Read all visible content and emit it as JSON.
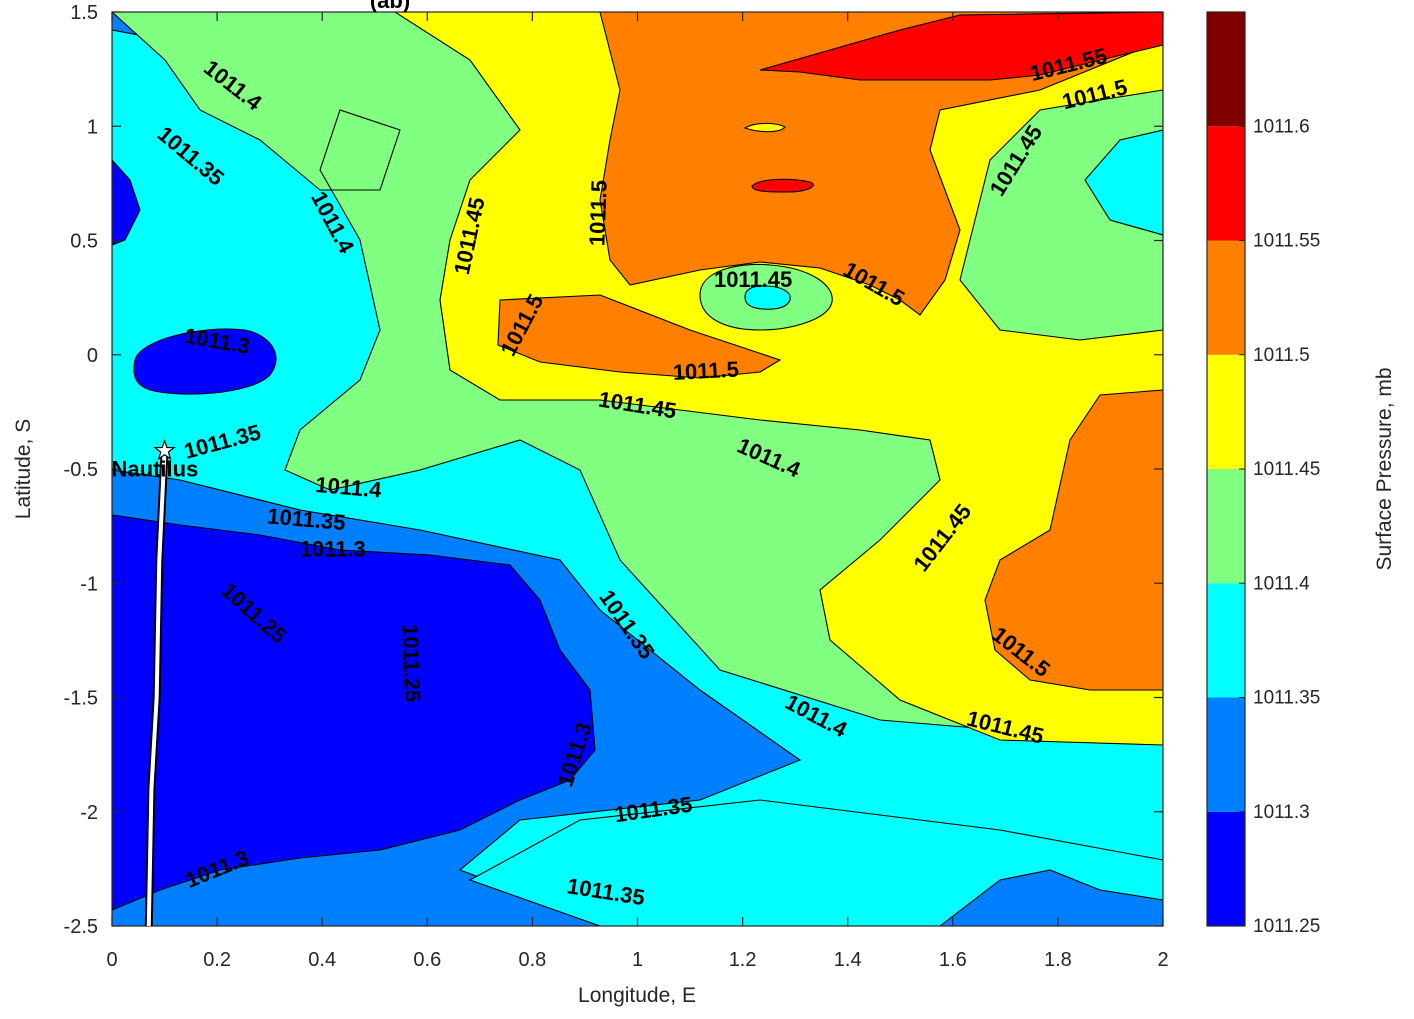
{
  "chart_data": {
    "type": "contour",
    "title_fragment": "(ab)",
    "xlabel": "Longitude, E",
    "ylabel": "Latitude, S",
    "xlim": [
      0,
      2
    ],
    "ylim": [
      -2.5,
      1.5
    ],
    "x_ticks": [
      "0",
      "0.2",
      "0.4",
      "0.6",
      "0.8",
      "1",
      "1.2",
      "1.4",
      "1.6",
      "1.8",
      "2"
    ],
    "y_ticks": [
      "1.5",
      "1",
      "0.5",
      "0",
      "-0.5",
      "-1",
      "-1.5",
      "-2",
      "-2.5"
    ],
    "colorbar": {
      "label": "Surface Pressure, mb",
      "ticks": [
        "1011.6",
        "1011.55",
        "1011.5",
        "1011.45",
        "1011.4",
        "1011.35",
        "1011.3",
        "1011.25"
      ],
      "levels": [
        {
          "min": 1011.25,
          "max": 1011.3,
          "color": "#0000ff"
        },
        {
          "min": 1011.3,
          "max": 1011.35,
          "color": "#0080ff"
        },
        {
          "min": 1011.35,
          "max": 1011.4,
          "color": "#00ffff"
        },
        {
          "min": 1011.4,
          "max": 1011.45,
          "color": "#80ff80"
        },
        {
          "min": 1011.45,
          "max": 1011.5,
          "color": "#ffff00"
        },
        {
          "min": 1011.5,
          "max": 1011.55,
          "color": "#ff8000"
        },
        {
          "min": 1011.55,
          "max": 1011.6,
          "color": "#ff0000"
        },
        {
          "min": 1011.6,
          "max": 1011.65,
          "color": "#800000"
        }
      ]
    },
    "contour_labels": [
      {
        "text": "1011.4",
        "x": 0.23,
        "y": 1.18,
        "rotation": 38
      },
      {
        "text": "1011.35",
        "x": 0.15,
        "y": 0.87,
        "rotation": 40
      },
      {
        "text": "1011.4",
        "x": 0.42,
        "y": 0.58,
        "rotation": 62
      },
      {
        "text": "1011.45",
        "x": 0.68,
        "y": 0.52,
        "rotation": -78
      },
      {
        "text": "1011.5",
        "x": 0.925,
        "y": 0.62,
        "rotation": -88
      },
      {
        "text": "1011.55",
        "x": 1.82,
        "y": 1.27,
        "rotation": -14
      },
      {
        "text": "1011.5",
        "x": 1.87,
        "y": 1.14,
        "rotation": -14
      },
      {
        "text": "1011.45",
        "x": 1.72,
        "y": 0.85,
        "rotation": -58
      },
      {
        "text": "1011.45",
        "x": 1.22,
        "y": 0.33,
        "rotation": 0
      },
      {
        "text": "1011.5",
        "x": 1.45,
        "y": 0.31,
        "rotation": 30
      },
      {
        "text": "1011.5",
        "x": 0.78,
        "y": 0.13,
        "rotation": -62
      },
      {
        "text": "1011.3",
        "x": 0.2,
        "y": 0.06,
        "rotation": 10
      },
      {
        "text": "1011.5",
        "x": 1.13,
        "y": -0.07,
        "rotation": -3
      },
      {
        "text": "1011.45",
        "x": 1.0,
        "y": -0.22,
        "rotation": 9
      },
      {
        "text": "1011.35",
        "x": 0.21,
        "y": -0.38,
        "rotation": -15
      },
      {
        "text": "1011.4",
        "x": 1.25,
        "y": -0.45,
        "rotation": 24
      },
      {
        "text": "1011.4",
        "x": 0.45,
        "y": -0.58,
        "rotation": 5
      },
      {
        "text": "1011.35",
        "x": 0.37,
        "y": -0.72,
        "rotation": 5
      },
      {
        "text": "1011.45",
        "x": 1.58,
        "y": -0.8,
        "rotation": -52
      },
      {
        "text": "1011.3",
        "x": 0.42,
        "y": -0.85,
        "rotation": 0
      },
      {
        "text": "1011.25",
        "x": 0.27,
        "y": -1.13,
        "rotation": 42
      },
      {
        "text": "1011.25",
        "x": 0.57,
        "y": -1.35,
        "rotation": 88
      },
      {
        "text": "1011.35",
        "x": 0.98,
        "y": -1.18,
        "rotation": 55
      },
      {
        "text": "1011.5",
        "x": 1.73,
        "y": -1.3,
        "rotation": 38
      },
      {
        "text": "1011.4",
        "x": 1.34,
        "y": -1.58,
        "rotation": 28
      },
      {
        "text": "1011.45",
        "x": 1.7,
        "y": -1.63,
        "rotation": 14
      },
      {
        "text": "1011.3",
        "x": 0.88,
        "y": -1.75,
        "rotation": -72
      },
      {
        "text": "1011.35",
        "x": 1.03,
        "y": -1.99,
        "rotation": -8
      },
      {
        "text": "1011.3",
        "x": 0.2,
        "y": -2.25,
        "rotation": -22
      },
      {
        "text": "1011.35",
        "x": 0.94,
        "y": -2.35,
        "rotation": 9
      }
    ],
    "marker": {
      "label": "Nautilus",
      "symbol": "pentagram",
      "x": 0.1,
      "y": -0.42
    },
    "track": [
      [
        0.1,
        -0.42
      ],
      [
        0.09,
        -0.9
      ],
      [
        0.085,
        -1.5
      ],
      [
        0.075,
        -1.9
      ],
      [
        0.07,
        -2.5
      ]
    ]
  }
}
